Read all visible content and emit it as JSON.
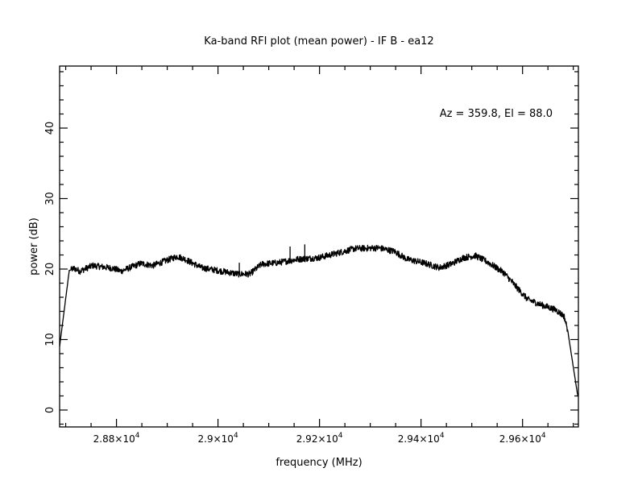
{
  "chart_data": {
    "type": "line",
    "title": "Ka-band RFI plot (mean power) - IF B - ea12",
    "xlabel": "frequency (MHz)",
    "ylabel": "power (dB)",
    "annotation": "Az = 359.8, El = 88.0",
    "xlim": [
      28688,
      29710
    ],
    "ylim": [
      -2.4,
      48.8
    ],
    "grid": false,
    "x_ticks": [
      {
        "value": 28800,
        "mantissa": "2.88",
        "exp": "4"
      },
      {
        "value": 29000,
        "mantissa": "2.9",
        "exp": "4"
      },
      {
        "value": 29200,
        "mantissa": "2.92",
        "exp": "4"
      },
      {
        "value": 29400,
        "mantissa": "2.94",
        "exp": "4"
      },
      {
        "value": 29600,
        "mantissa": "2.96",
        "exp": "4"
      }
    ],
    "x_minor_step": 50,
    "y_ticks": [
      {
        "value": 0,
        "label": "0"
      },
      {
        "value": 10,
        "label": "10"
      },
      {
        "value": 20,
        "label": "20"
      },
      {
        "value": 30,
        "label": "30"
      },
      {
        "value": 40,
        "label": "40"
      }
    ],
    "y_minor_step": 2,
    "line_color": "#000000",
    "series": [
      {
        "name": "mean power",
        "x": [
          28688,
          28707,
          28717,
          28728,
          28753,
          28793,
          28809,
          28848,
          28872,
          28920,
          28935,
          28967,
          28999,
          29039,
          29063,
          29086,
          29118,
          29158,
          29198,
          29237,
          29269,
          29317,
          29348,
          29372,
          29404,
          29436,
          29459,
          29483,
          29507,
          29531,
          29563,
          29586,
          29610,
          29634,
          29666,
          29682,
          29689,
          29701,
          29709
        ],
        "y": [
          9.0,
          19.8,
          20.1,
          19.7,
          20.5,
          20.1,
          19.7,
          20.8,
          20.5,
          21.8,
          21.4,
          20.2,
          19.8,
          19.3,
          19.3,
          20.7,
          20.9,
          21.4,
          21.6,
          22.3,
          22.9,
          23.0,
          22.5,
          21.4,
          20.9,
          20.2,
          20.7,
          21.6,
          21.9,
          21.0,
          19.5,
          17.6,
          15.7,
          15.0,
          14.2,
          13.3,
          11.3,
          5.6,
          1.9
        ]
      }
    ],
    "spikes": [
      {
        "x": 29042,
        "y": 20.9
      },
      {
        "x": 29142,
        "y": 23.2
      },
      {
        "x": 29171,
        "y": 23.5
      },
      {
        "x": 29580,
        "y": 18.6
      }
    ]
  }
}
